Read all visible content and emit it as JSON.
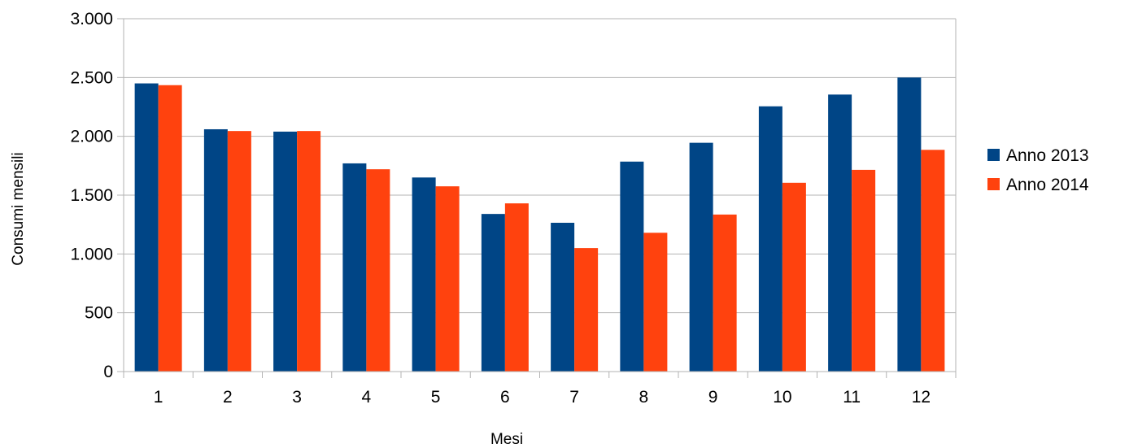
{
  "chart_data": {
    "type": "bar",
    "title": "",
    "xlabel": "Mesi",
    "ylabel": "Consumi mensili",
    "categories": [
      "1",
      "2",
      "3",
      "4",
      "5",
      "6",
      "7",
      "8",
      "9",
      "10",
      "11",
      "12"
    ],
    "series": [
      {
        "name": "Anno 2013",
        "color": "#004586",
        "values": [
          2450,
          2060,
          2040,
          1770,
          1650,
          1340,
          1265,
          1785,
          1945,
          2255,
          2355,
          2500
        ]
      },
      {
        "name": "Anno 2014",
        "color": "#ff420e",
        "values": [
          2435,
          2045,
          2045,
          1720,
          1575,
          1430,
          1050,
          1180,
          1335,
          1605,
          1715,
          1885
        ]
      }
    ],
    "ylim": [
      0,
      3000
    ],
    "yticks": [
      0,
      500,
      1000,
      1500,
      2000,
      2500,
      3000
    ],
    "ytick_labels": [
      "0",
      "500",
      "1.000",
      "1.500",
      "2.000",
      "2.500",
      "3.000"
    ],
    "grid": true,
    "legend_position": "right"
  }
}
